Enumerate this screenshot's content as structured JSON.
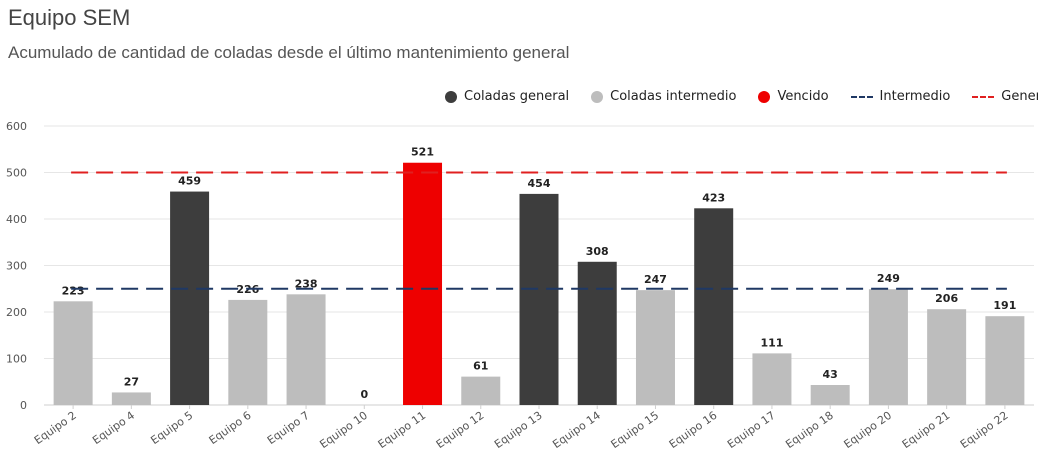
{
  "header": {
    "title": "Equipo SEM",
    "subtitle": "Acumulado de cantidad de coladas desde el último mantenimiento general"
  },
  "legend": [
    {
      "label": "Coladas general",
      "shape": "dot",
      "color": "#3d3d3d"
    },
    {
      "label": "Coladas intermedio",
      "shape": "dot",
      "color": "#bdbdbd"
    },
    {
      "label": "Vencido",
      "shape": "dot",
      "color": "#ee0000"
    },
    {
      "label": "Intermedio",
      "shape": "dash",
      "color": "#1f3864"
    },
    {
      "label": "General",
      "shape": "dash",
      "color": "#e02020"
    }
  ],
  "chart_data": {
    "type": "bar",
    "title": "Equipo SEM",
    "subtitle": "Acumulado de cantidad de coladas desde el último mantenimiento general",
    "xlabel": "",
    "ylabel": "",
    "ylim": [
      0,
      600
    ],
    "yticks": [
      0,
      100,
      200,
      300,
      400,
      500,
      600
    ],
    "grid": true,
    "legend_position": "top-right",
    "categories": [
      "Equipo 2",
      "Equipo 4",
      "Equipo 5",
      "Equipo 6",
      "Equipo 7",
      "Equipo 10",
      "Equipo 11",
      "Equipo 12",
      "Equipo 13",
      "Equipo 14",
      "Equipo 15",
      "Equipo 16",
      "Equipo 17",
      "Equipo 18",
      "Equipo 20",
      "Equipo 21",
      "Equipo 22"
    ],
    "values": [
      223,
      27,
      459,
      226,
      238,
      0,
      521,
      61,
      454,
      308,
      247,
      423,
      111,
      43,
      249,
      206,
      191
    ],
    "status": [
      "Coladas intermedio",
      "Coladas intermedio",
      "Coladas general",
      "Coladas intermedio",
      "Coladas intermedio",
      "Coladas intermedio",
      "Vencido",
      "Coladas intermedio",
      "Coladas general",
      "Coladas general",
      "Coladas intermedio",
      "Coladas general",
      "Coladas intermedio",
      "Coladas intermedio",
      "Coladas intermedio",
      "Coladas intermedio",
      "Coladas intermedio"
    ],
    "colors": {
      "Coladas general": "#3d3d3d",
      "Coladas intermedio": "#bdbdbd",
      "Vencido": "#ee0000"
    },
    "reference_lines": [
      {
        "name": "Intermedio",
        "value": 250,
        "color": "#1f3864"
      },
      {
        "name": "General",
        "value": 500,
        "color": "#e02020"
      }
    ]
  }
}
